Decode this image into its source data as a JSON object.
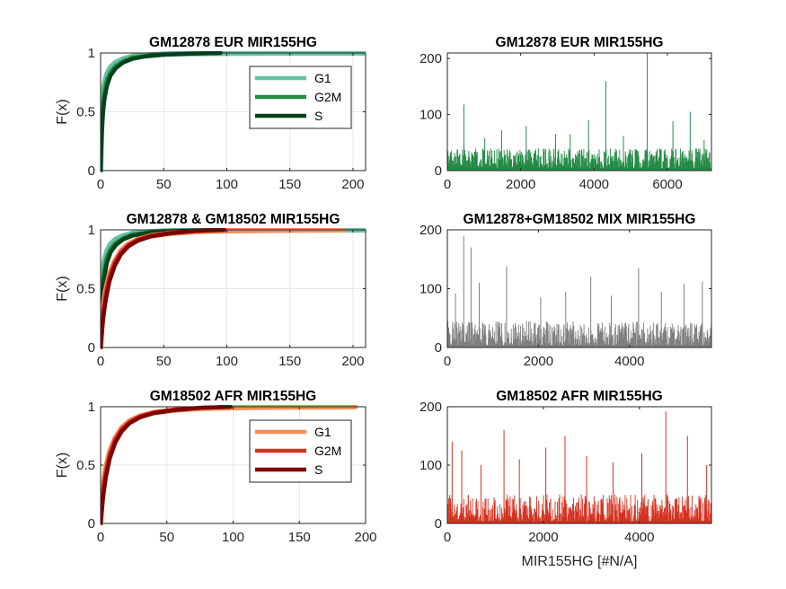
{
  "chart_data": [
    {
      "type": "line",
      "title": "GM12878 EUR MIR155HG",
      "ylabel": "F(x)",
      "xlim": [
        0,
        210
      ],
      "ylim": [
        0,
        1
      ],
      "xticks": [
        "0",
        "50",
        "100",
        "150",
        "200"
      ],
      "yticks": [
        "0",
        "0.5",
        "1"
      ],
      "legend": "top-right",
      "series": [
        {
          "name": "G1",
          "color": "#66c2a4",
          "x": [
            0,
            1,
            2,
            3,
            5,
            8,
            12,
            18,
            25,
            35,
            50,
            70,
            95,
            130,
            170,
            210
          ],
          "y": [
            0,
            0.5,
            0.66,
            0.74,
            0.82,
            0.88,
            0.92,
            0.95,
            0.97,
            0.98,
            0.99,
            0.995,
            0.997,
            0.999,
            1,
            1
          ]
        },
        {
          "name": "G2M",
          "color": "#238b45",
          "x": [
            0,
            1,
            2,
            3,
            5,
            8,
            12,
            18,
            25,
            35,
            50,
            70,
            95
          ],
          "y": [
            0,
            0.42,
            0.58,
            0.67,
            0.77,
            0.84,
            0.89,
            0.93,
            0.96,
            0.975,
            0.99,
            0.995,
            1
          ]
        },
        {
          "name": "S",
          "color": "#00441b",
          "x": [
            0,
            1,
            2,
            3,
            5,
            8,
            12,
            18,
            25,
            35,
            50,
            70,
            95
          ],
          "y": [
            0,
            0.32,
            0.5,
            0.6,
            0.72,
            0.81,
            0.87,
            0.92,
            0.95,
            0.97,
            0.985,
            0.995,
            1
          ]
        }
      ]
    },
    {
      "type": "bar",
      "title": "GM12878 EUR MIR155HG",
      "xlim": [
        0,
        7200
      ],
      "ylim": [
        0,
        210
      ],
      "xticks": [
        "0",
        "2000",
        "4000",
        "6000"
      ],
      "yticks": [
        "0",
        "100",
        "200"
      ],
      "color": "#238b45",
      "n": 7200,
      "typical_max": 40,
      "peaks": [
        {
          "x": 450,
          "y": 118
        },
        {
          "x": 1020,
          "y": 58
        },
        {
          "x": 1480,
          "y": 72
        },
        {
          "x": 2150,
          "y": 80
        },
        {
          "x": 2950,
          "y": 65
        },
        {
          "x": 3350,
          "y": 65
        },
        {
          "x": 3850,
          "y": 90
        },
        {
          "x": 4320,
          "y": 160
        },
        {
          "x": 4800,
          "y": 62
        },
        {
          "x": 5450,
          "y": 210
        },
        {
          "x": 6150,
          "y": 88
        },
        {
          "x": 6620,
          "y": 105
        },
        {
          "x": 7000,
          "y": 55
        }
      ]
    },
    {
      "type": "line",
      "title": "GM12878 & GM18502 MIR155HG",
      "ylabel": "F(x)",
      "xlim": [
        0,
        210
      ],
      "ylim": [
        0,
        1
      ],
      "xticks": [
        "0",
        "50",
        "100",
        "150",
        "200"
      ],
      "yticks": [
        "0",
        "0.5",
        "1"
      ],
      "series": [
        {
          "color": "#66c2a4",
          "x": [
            0,
            1,
            2,
            3,
            5,
            8,
            12,
            18,
            25,
            35,
            50,
            70,
            95,
            130,
            170,
            210
          ],
          "y": [
            0,
            0.5,
            0.66,
            0.74,
            0.82,
            0.88,
            0.92,
            0.95,
            0.97,
            0.98,
            0.99,
            0.995,
            0.997,
            0.999,
            1,
            1
          ]
        },
        {
          "color": "#238b45",
          "x": [
            0,
            1,
            2,
            3,
            5,
            8,
            12,
            18,
            25,
            35,
            50,
            70,
            95
          ],
          "y": [
            0,
            0.42,
            0.58,
            0.67,
            0.77,
            0.84,
            0.89,
            0.93,
            0.96,
            0.975,
            0.99,
            0.995,
            1
          ]
        },
        {
          "color": "#00441b",
          "x": [
            0,
            1,
            2,
            3,
            5,
            8,
            12,
            18,
            25,
            35,
            50,
            70,
            95
          ],
          "y": [
            0,
            0.32,
            0.5,
            0.6,
            0.72,
            0.81,
            0.87,
            0.92,
            0.95,
            0.97,
            0.985,
            0.995,
            1
          ]
        },
        {
          "color": "#fc8d59",
          "x": [
            0,
            1,
            2,
            4,
            7,
            11,
            16,
            22,
            30,
            40,
            55,
            75,
            100,
            140,
            192
          ],
          "y": [
            0,
            0.2,
            0.33,
            0.48,
            0.62,
            0.73,
            0.82,
            0.88,
            0.92,
            0.95,
            0.97,
            0.985,
            0.992,
            0.997,
            1
          ]
        },
        {
          "color": "#d7301f",
          "x": [
            0,
            1,
            2,
            4,
            7,
            11,
            16,
            22,
            30,
            40,
            55,
            75,
            98
          ],
          "y": [
            0,
            0.18,
            0.3,
            0.45,
            0.6,
            0.72,
            0.81,
            0.87,
            0.92,
            0.95,
            0.975,
            0.99,
            1
          ]
        },
        {
          "color": "#7f0000",
          "x": [
            0,
            1,
            2,
            4,
            7,
            11,
            16,
            22,
            30,
            40,
            55,
            75,
            98
          ],
          "y": [
            0,
            0.12,
            0.24,
            0.4,
            0.56,
            0.69,
            0.79,
            0.86,
            0.91,
            0.945,
            0.97,
            0.99,
            1
          ]
        }
      ]
    },
    {
      "type": "bar",
      "title": "GM12878+GM18502 MIX MIR155HG",
      "xlim": [
        0,
        5800
      ],
      "ylim": [
        0,
        200
      ],
      "xticks": [
        "0",
        "2000",
        "4000"
      ],
      "yticks": [
        "0",
        "100",
        "200"
      ],
      "color": "#7f7f7f",
      "n": 5800,
      "typical_max": 45,
      "peaks": [
        {
          "x": 180,
          "y": 92
        },
        {
          "x": 360,
          "y": 190
        },
        {
          "x": 520,
          "y": 170
        },
        {
          "x": 700,
          "y": 110
        },
        {
          "x": 1300,
          "y": 138
        },
        {
          "x": 2050,
          "y": 85
        },
        {
          "x": 2600,
          "y": 95
        },
        {
          "x": 3150,
          "y": 120
        },
        {
          "x": 3600,
          "y": 88
        },
        {
          "x": 4200,
          "y": 135
        },
        {
          "x": 4700,
          "y": 95
        },
        {
          "x": 5200,
          "y": 108
        },
        {
          "x": 5600,
          "y": 112
        }
      ]
    },
    {
      "type": "line",
      "title": "GM18502 AFR MIR155HG",
      "ylabel": "F(x)",
      "xlim": [
        0,
        200
      ],
      "ylim": [
        0,
        1
      ],
      "xticks": [
        "0",
        "50",
        "100",
        "150",
        "200"
      ],
      "yticks": [
        "0",
        "0.5",
        "1"
      ],
      "legend": "top-right",
      "series": [
        {
          "name": "G1",
          "color": "#fc8d59",
          "x": [
            0,
            1,
            2,
            4,
            7,
            11,
            16,
            22,
            30,
            40,
            55,
            75,
            100,
            140,
            192
          ],
          "y": [
            0,
            0.2,
            0.33,
            0.48,
            0.62,
            0.73,
            0.82,
            0.88,
            0.92,
            0.95,
            0.97,
            0.985,
            0.992,
            0.997,
            1
          ]
        },
        {
          "name": "G2M",
          "color": "#d7301f",
          "x": [
            0,
            1,
            2,
            4,
            7,
            11,
            16,
            22,
            30,
            40,
            55,
            75,
            98
          ],
          "y": [
            0,
            0.18,
            0.3,
            0.45,
            0.6,
            0.72,
            0.81,
            0.87,
            0.92,
            0.95,
            0.975,
            0.99,
            1
          ]
        },
        {
          "name": "S",
          "color": "#7f0000",
          "x": [
            0,
            1,
            2,
            4,
            7,
            11,
            16,
            22,
            30,
            40,
            55,
            75,
            98
          ],
          "y": [
            0,
            0.12,
            0.24,
            0.4,
            0.56,
            0.69,
            0.79,
            0.86,
            0.91,
            0.945,
            0.97,
            0.99,
            1
          ]
        }
      ]
    },
    {
      "type": "bar",
      "title": "GM18502 AFR MIR155HG",
      "xlabel": "MIR155HG [#N/A]",
      "xlim": [
        0,
        5500
      ],
      "ylim": [
        0,
        200
      ],
      "xticks": [
        "0",
        "2000",
        "4000"
      ],
      "yticks": [
        "0",
        "100",
        "200"
      ],
      "color": "#d7301f",
      "n": 5500,
      "typical_max": 50,
      "peaks": [
        {
          "x": 100,
          "y": 140
        },
        {
          "x": 300,
          "y": 125
        },
        {
          "x": 700,
          "y": 100
        },
        {
          "x": 1180,
          "y": 160
        },
        {
          "x": 1500,
          "y": 110
        },
        {
          "x": 2050,
          "y": 130
        },
        {
          "x": 2450,
          "y": 150
        },
        {
          "x": 2900,
          "y": 115
        },
        {
          "x": 3450,
          "y": 105
        },
        {
          "x": 4050,
          "y": 120
        },
        {
          "x": 4550,
          "y": 192
        },
        {
          "x": 5000,
          "y": 150
        },
        {
          "x": 5400,
          "y": 100
        }
      ]
    }
  ]
}
